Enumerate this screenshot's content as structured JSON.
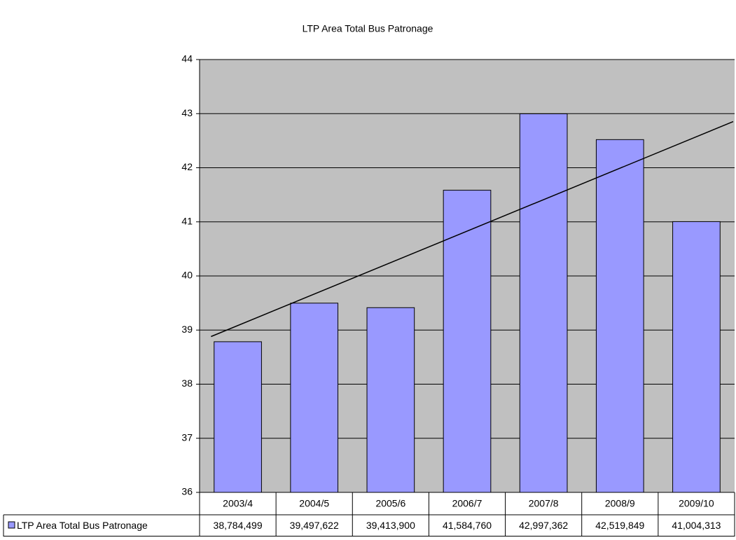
{
  "chart_data": {
    "type": "bar",
    "title": "LTP Area Total Bus Patronage",
    "categories": [
      "2003/4",
      "2004/5",
      "2005/6",
      "2006/7",
      "2007/8",
      "2008/9",
      "2009/10"
    ],
    "series": [
      {
        "name": "LTP Area Total Bus Patronage",
        "color": "#9999ff",
        "values": [
          38.784499,
          39.497622,
          39.4139,
          41.58476,
          42.997362,
          42.519849,
          41.004313
        ],
        "value_labels": [
          "38,784,499",
          "39,497,622",
          "39,413,900",
          "41,584,760",
          "42,997,362",
          "42,519,849",
          "41,004,313"
        ]
      }
    ],
    "ylim": [
      36,
      44
    ],
    "yticks": [
      36,
      37,
      38,
      39,
      40,
      41,
      42,
      43,
      44
    ],
    "grid": true,
    "trendline": "linear",
    "data_table": true,
    "plot_background": "#c0c0c0"
  }
}
